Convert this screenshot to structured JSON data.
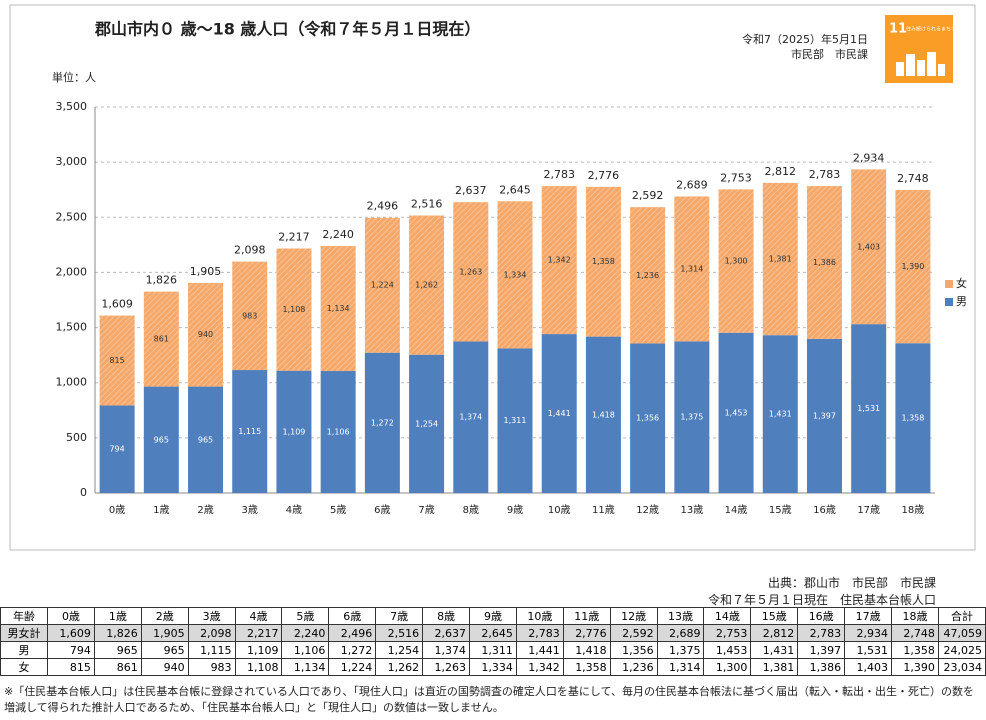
{
  "chart_data": {
    "type": "stacked_bar",
    "title": "郡山市内０ 歳～18 歳人口（令和７年５月１日現在）",
    "date_note": "令和7（2025）年5月1日",
    "dept_note": "市民部　市民課",
    "unit_label": "単位：人",
    "sdg_icon": {
      "number": "11",
      "text": "住み続けられるまちづくりを"
    },
    "categories": [
      "0歳",
      "1歳",
      "2歳",
      "3歳",
      "4歳",
      "5歳",
      "6歳",
      "7歳",
      "8歳",
      "9歳",
      "10歳",
      "11歳",
      "12歳",
      "13歳",
      "14歳",
      "15歳",
      "16歳",
      "17歳",
      "18歳"
    ],
    "series": [
      {
        "name": "男",
        "color": "#4f7fbd",
        "values": [
          794,
          965,
          965,
          1115,
          1109,
          1106,
          1272,
          1254,
          1374,
          1311,
          1441,
          1418,
          1356,
          1375,
          1453,
          1431,
          1397,
          1531,
          1358
        ],
        "value_labels": [
          "794",
          "965",
          "965",
          "1,115",
          "1,109",
          "1,106",
          "1,272",
          "1,254",
          "1,374",
          "1,311",
          "1,441",
          "1,418",
          "1,356",
          "1,375",
          "1,453",
          "1,431",
          "1,397",
          "1,531",
          "1,358"
        ]
      },
      {
        "name": "女",
        "color": "#f5a86a",
        "values": [
          815,
          861,
          940,
          983,
          1108,
          1134,
          1224,
          1262,
          1263,
          1334,
          1342,
          1358,
          1236,
          1314,
          1300,
          1381,
          1386,
          1403,
          1390
        ],
        "value_labels": [
          "815",
          "861",
          "940",
          "983",
          "1,108",
          "1,134",
          "1,224",
          "1,262",
          "1,263",
          "1,334",
          "1,342",
          "1,358",
          "1,236",
          "1,314",
          "1,300",
          "1,381",
          "1,386",
          "1,403",
          "1,390"
        ]
      }
    ],
    "totals": [
      1609,
      1826,
      1905,
      2098,
      2217,
      2240,
      2496,
      2516,
      2637,
      2645,
      2783,
      2776,
      2592,
      2689,
      2753,
      2812,
      2783,
      2934,
      2748
    ],
    "total_labels": [
      "1,609",
      "1,826",
      "1,905",
      "2,098",
      "2,217",
      "2,240",
      "2,496",
      "2,516",
      "2,637",
      "2,645",
      "2,783",
      "2,776",
      "2,592",
      "2,689",
      "2,753",
      "2,812",
      "2,783",
      "2,934",
      "2,748"
    ],
    "ylim": [
      0,
      3500
    ],
    "yticks": [
      0,
      500,
      {
        "value": 1000,
        "label": "1,000"
      },
      {
        "value": 1500,
        "label": "1,500"
      },
      {
        "value": 2000,
        "label": "2,000"
      },
      {
        "value": 2500,
        "label": "2,500"
      },
      {
        "value": 3000,
        "label": "3,000"
      },
      {
        "value": 3500,
        "label": "3,500"
      }
    ],
    "grid": true,
    "legend": "right"
  },
  "table": {
    "source": "出典：郡山市　市民部　市民課",
    "as_of": "令和７年５月１日現在　住民基本台帳人口",
    "header": [
      "年齢",
      "0歳",
      "1歳",
      "2歳",
      "3歳",
      "4歳",
      "5歳",
      "6歳",
      "7歳",
      "8歳",
      "9歳",
      "10歳",
      "11歳",
      "12歳",
      "13歳",
      "14歳",
      "15歳",
      "16歳",
      "17歳",
      "18歳",
      "合計"
    ],
    "rows": [
      [
        "男女計",
        "1,609",
        "1,826",
        "1,905",
        "2,098",
        "2,217",
        "2,240",
        "2,496",
        "2,516",
        "2,637",
        "2,645",
        "2,783",
        "2,776",
        "2,592",
        "2,689",
        "2,753",
        "2,812",
        "2,783",
        "2,934",
        "2,748",
        "47,059"
      ],
      [
        "男",
        "794",
        "965",
        "965",
        "1,115",
        "1,109",
        "1,106",
        "1,272",
        "1,254",
        "1,374",
        "1,311",
        "1,441",
        "1,418",
        "1,356",
        "1,375",
        "1,453",
        "1,431",
        "1,397",
        "1,531",
        "1,358",
        "24,025"
      ],
      [
        "女",
        "815",
        "861",
        "940",
        "983",
        "1,108",
        "1,134",
        "1,224",
        "1,262",
        "1,263",
        "1,334",
        "1,342",
        "1,358",
        "1,236",
        "1,314",
        "1,300",
        "1,381",
        "1,386",
        "1,403",
        "1,390",
        "23,034"
      ]
    ],
    "footnote": "※「住民基本台帳人口」は住民基本台帳に登録されている人口であり、「現住人口」は直近の国勢調査の確定人口を基にして、毎月の住民基本台帳法に基づく届出（転入・転出・出生・死亡）の数を増減して得られた推計人口であるため、「住民基本台帳人口」と「現住人口」の数値は一致しません。"
  }
}
